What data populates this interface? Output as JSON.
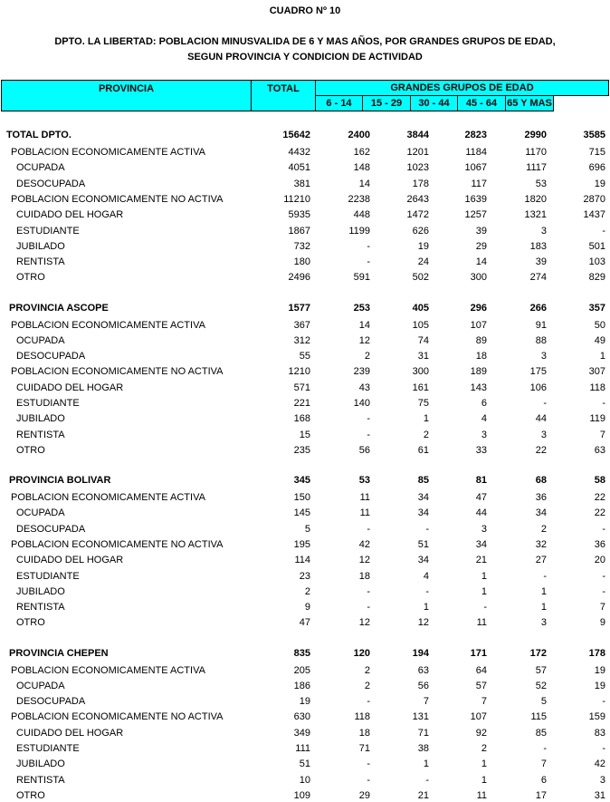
{
  "title": "CUADRO Nº 10",
  "subtitle_line1": "DPTO. LA LIBERTAD: POBLACION MINUSVALIDA DE 6 Y MAS AÑOS, POR GRANDES GRUPOS DE EDAD,",
  "subtitle_line2": "SEGUN PROVINCIA Y CONDICION DE ACTIVIDAD",
  "header": {
    "provincia": "PROVINCIA",
    "total": "TOTAL",
    "group": "GRANDES  GRUPOS  DE  EDAD",
    "ages": [
      "6 - 14",
      "15 - 29",
      "30 - 44",
      "45 - 64",
      "65 Y MAS"
    ],
    "color": "#00ffff"
  },
  "sections": [
    {
      "name": "TOTAL  DPTO.",
      "values": [
        "15642",
        "2400",
        "3844",
        "2823",
        "2990",
        "3585"
      ],
      "rows": [
        {
          "label": "POBLACION ECONOMICAMENTE ACTIVA",
          "level": 1,
          "values": [
            "4432",
            "162",
            "1201",
            "1184",
            "1170",
            "715"
          ]
        },
        {
          "label": "OCUPADA",
          "level": 2,
          "values": [
            "4051",
            "148",
            "1023",
            "1067",
            "1117",
            "696"
          ]
        },
        {
          "label": "DESOCUPADA",
          "level": 2,
          "values": [
            "381",
            "14",
            "178",
            "117",
            "53",
            "19"
          ]
        },
        {
          "label": "POBLACION ECONOMICAMENTE NO ACTIVA",
          "level": 1,
          "values": [
            "11210",
            "2238",
            "2643",
            "1639",
            "1820",
            "2870"
          ]
        },
        {
          "label": "CUIDADO DEL HOGAR",
          "level": 2,
          "values": [
            "5935",
            "448",
            "1472",
            "1257",
            "1321",
            "1437"
          ]
        },
        {
          "label": "ESTUDIANTE",
          "level": 2,
          "values": [
            "1867",
            "1199",
            "626",
            "39",
            "3",
            "-"
          ]
        },
        {
          "label": "JUBILADO",
          "level": 2,
          "values": [
            "732",
            "-",
            "19",
            "29",
            "183",
            "501"
          ]
        },
        {
          "label": "RENTISTA",
          "level": 2,
          "values": [
            "180",
            "-",
            "24",
            "14",
            "39",
            "103"
          ]
        },
        {
          "label": "OTRO",
          "level": 2,
          "values": [
            "2496",
            "591",
            "502",
            "300",
            "274",
            "829"
          ]
        }
      ]
    },
    {
      "name": "PROVINCIA ASCOPE",
      "values": [
        "1577",
        "253",
        "405",
        "296",
        "266",
        "357"
      ],
      "rows": [
        {
          "label": "POBLACION ECONOMICAMENTE ACTIVA",
          "level": 1,
          "values": [
            "367",
            "14",
            "105",
            "107",
            "91",
            "50"
          ]
        },
        {
          "label": "OCUPADA",
          "level": 2,
          "values": [
            "312",
            "12",
            "74",
            "89",
            "88",
            "49"
          ]
        },
        {
          "label": "DESOCUPADA",
          "level": 2,
          "values": [
            "55",
            "2",
            "31",
            "18",
            "3",
            "1"
          ]
        },
        {
          "label": "POBLACION ECONOMICAMENTE NO ACTIVA",
          "level": 1,
          "values": [
            "1210",
            "239",
            "300",
            "189",
            "175",
            "307"
          ]
        },
        {
          "label": "CUIDADO DEL HOGAR",
          "level": 2,
          "values": [
            "571",
            "43",
            "161",
            "143",
            "106",
            "118"
          ]
        },
        {
          "label": "ESTUDIANTE",
          "level": 2,
          "values": [
            "221",
            "140",
            "75",
            "6",
            "-",
            "-"
          ]
        },
        {
          "label": "JUBILADO",
          "level": 2,
          "values": [
            "168",
            "-",
            "1",
            "4",
            "44",
            "119"
          ]
        },
        {
          "label": "RENTISTA",
          "level": 2,
          "values": [
            "15",
            "-",
            "2",
            "3",
            "3",
            "7"
          ]
        },
        {
          "label": "OTRO",
          "level": 2,
          "values": [
            "235",
            "56",
            "61",
            "33",
            "22",
            "63"
          ]
        }
      ]
    },
    {
      "name": "PROVINCIA BOLIVAR",
      "values": [
        "345",
        "53",
        "85",
        "81",
        "68",
        "58"
      ],
      "rows": [
        {
          "label": "POBLACION ECONOMICAMENTE ACTIVA",
          "level": 1,
          "values": [
            "150",
            "11",
            "34",
            "47",
            "36",
            "22"
          ]
        },
        {
          "label": "OCUPADA",
          "level": 2,
          "values": [
            "145",
            "11",
            "34",
            "44",
            "34",
            "22"
          ]
        },
        {
          "label": "DESOCUPADA",
          "level": 2,
          "values": [
            "5",
            "-",
            "-",
            "3",
            "2",
            "-"
          ]
        },
        {
          "label": "POBLACION ECONOMICAMENTE NO ACTIVA",
          "level": 1,
          "values": [
            "195",
            "42",
            "51",
            "34",
            "32",
            "36"
          ]
        },
        {
          "label": "CUIDADO DEL HOGAR",
          "level": 2,
          "values": [
            "114",
            "12",
            "34",
            "21",
            "27",
            "20"
          ]
        },
        {
          "label": "ESTUDIANTE",
          "level": 2,
          "values": [
            "23",
            "18",
            "4",
            "1",
            "-",
            "-"
          ]
        },
        {
          "label": "JUBILADO",
          "level": 2,
          "values": [
            "2",
            "-",
            "-",
            "1",
            "1",
            "-"
          ]
        },
        {
          "label": "RENTISTA",
          "level": 2,
          "values": [
            "9",
            "-",
            "1",
            "-",
            "1",
            "7"
          ]
        },
        {
          "label": "OTRO",
          "level": 2,
          "values": [
            "47",
            "12",
            "12",
            "11",
            "3",
            "9"
          ]
        }
      ]
    },
    {
      "name": "PROVINCIA CHEPEN",
      "values": [
        "835",
        "120",
        "194",
        "171",
        "172",
        "178"
      ],
      "rows": [
        {
          "label": "POBLACION ECONOMICAMENTE ACTIVA",
          "level": 1,
          "values": [
            "205",
            "2",
            "63",
            "64",
            "57",
            "19"
          ]
        },
        {
          "label": "OCUPADA",
          "level": 2,
          "values": [
            "186",
            "2",
            "56",
            "57",
            "52",
            "19"
          ]
        },
        {
          "label": "DESOCUPADA",
          "level": 2,
          "values": [
            "19",
            "-",
            "7",
            "7",
            "5",
            "-"
          ]
        },
        {
          "label": "POBLACION ECONOMICAMENTE NO ACTIVA",
          "level": 1,
          "values": [
            "630",
            "118",
            "131",
            "107",
            "115",
            "159"
          ]
        },
        {
          "label": "CUIDADO DEL HOGAR",
          "level": 2,
          "values": [
            "349",
            "18",
            "71",
            "92",
            "85",
            "83"
          ]
        },
        {
          "label": "ESTUDIANTE",
          "level": 2,
          "values": [
            "111",
            "71",
            "38",
            "2",
            "-",
            "-"
          ]
        },
        {
          "label": "JUBILADO",
          "level": 2,
          "values": [
            "51",
            "-",
            "1",
            "1",
            "7",
            "42"
          ]
        },
        {
          "label": "RENTISTA",
          "level": 2,
          "values": [
            "10",
            "-",
            "-",
            "1",
            "6",
            "3"
          ]
        },
        {
          "label": "OTRO",
          "level": 2,
          "values": [
            "109",
            "29",
            "21",
            "11",
            "17",
            "31"
          ]
        }
      ]
    }
  ]
}
